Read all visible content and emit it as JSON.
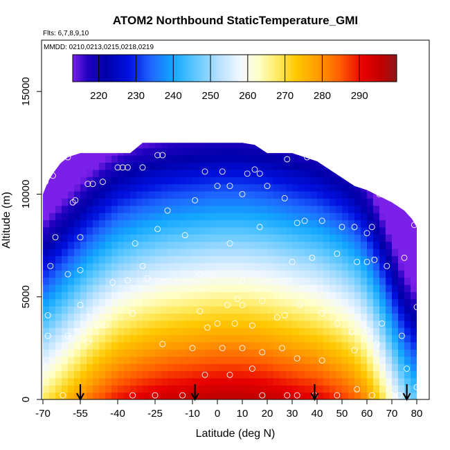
{
  "chart_data": {
    "type": "heatmap",
    "title": "ATOM2 Northbound StaticTemperature_GMI",
    "flights_note": "Flts: 6,7,8,9,10",
    "dates_note": "MMDD: 0210,0213,0215,0218,0219",
    "xlabel": "Latitude (deg N)",
    "ylabel": "Altitude (m)",
    "xlim": [
      -70,
      85
    ],
    "ylim": [
      0,
      17500
    ],
    "x_ticks": [
      -70,
      -55,
      -40,
      -25,
      -10,
      0,
      10,
      20,
      30,
      40,
      50,
      60,
      70,
      80
    ],
    "x_tick_labels": [
      "-70",
      "-55",
      "-40",
      "-25",
      "-10",
      "0",
      "10",
      "20",
      "30",
      "40",
      "50",
      "60",
      "70",
      "80"
    ],
    "y_ticks": [
      0,
      5000,
      10000,
      15000
    ],
    "y_tick_labels": [
      "0",
      "5000",
      "10000",
      "15000"
    ],
    "colorbar": {
      "min": 213,
      "max": 300,
      "ticks": [
        220,
        230,
        240,
        250,
        260,
        270,
        280,
        290
      ],
      "tick_labels": [
        "220",
        "230",
        "240",
        "250",
        "260",
        "270",
        "280",
        "290"
      ],
      "stops": [
        {
          "v": 213,
          "c": "#7a20e8"
        },
        {
          "v": 217,
          "c": "#2000c0"
        },
        {
          "v": 222,
          "c": "#0000a8"
        },
        {
          "v": 228,
          "c": "#0010e0"
        },
        {
          "v": 234,
          "c": "#1e66ff"
        },
        {
          "v": 240,
          "c": "#12a8ff"
        },
        {
          "v": 246,
          "c": "#60c8ff"
        },
        {
          "v": 252,
          "c": "#b4e0ff"
        },
        {
          "v": 258,
          "c": "#f2f8ff"
        },
        {
          "v": 263,
          "c": "#ffffc8"
        },
        {
          "v": 268,
          "c": "#ffea60"
        },
        {
          "v": 273,
          "c": "#ffc800"
        },
        {
          "v": 279,
          "c": "#ff9a00"
        },
        {
          "v": 285,
          "c": "#ff5a00"
        },
        {
          "v": 291,
          "c": "#e80000"
        },
        {
          "v": 296,
          "c": "#c00000"
        },
        {
          "v": 300,
          "c": "#8e1a1a"
        }
      ]
    },
    "coverage_top_altitude": [
      [
        -70,
        10000
      ],
      [
        -68,
        10600
      ],
      [
        -66,
        11000
      ],
      [
        -63,
        11500
      ],
      [
        -60,
        11800
      ],
      [
        -55,
        12000
      ],
      [
        -50,
        12000
      ],
      [
        -45,
        12000
      ],
      [
        -40,
        12000
      ],
      [
        -35,
        12000
      ],
      [
        -30,
        12500
      ],
      [
        -20,
        12500
      ],
      [
        -10,
        12500
      ],
      [
        0,
        12500
      ],
      [
        10,
        12500
      ],
      [
        15,
        12400
      ],
      [
        20,
        12000
      ],
      [
        25,
        12000
      ],
      [
        30,
        12000
      ],
      [
        35,
        11800
      ],
      [
        40,
        11600
      ],
      [
        45,
        11200
      ],
      [
        50,
        10800
      ],
      [
        55,
        10400
      ],
      [
        60,
        10200
      ],
      [
        65,
        9900
      ],
      [
        70,
        9600
      ],
      [
        75,
        9200
      ],
      [
        78,
        8800
      ],
      [
        80,
        8400
      ]
    ],
    "coverage_xrange": [
      -70,
      80
    ],
    "temperature_field_model": {
      "surface_temperature_profile": [
        [
          -70,
          268
        ],
        [
          -60,
          276
        ],
        [
          -50,
          284
        ],
        [
          -40,
          290
        ],
        [
          -30,
          293
        ],
        [
          -20,
          295
        ],
        [
          -10,
          296
        ],
        [
          0,
          297
        ],
        [
          10,
          297
        ],
        [
          20,
          296
        ],
        [
          30,
          294
        ],
        [
          40,
          292
        ],
        [
          50,
          288
        ],
        [
          55,
          285
        ],
        [
          60,
          280
        ],
        [
          65,
          272
        ],
        [
          70,
          262
        ],
        [
          75,
          252
        ],
        [
          80,
          246
        ]
      ],
      "lapse_rate_K_per_km": 6.3
    },
    "markers": {
      "type": "arrow-down",
      "x": [
        -55,
        -9,
        39,
        76
      ]
    },
    "points": [
      [
        -71,
        10100
      ],
      [
        -69,
        10600
      ],
      [
        -66,
        10900
      ],
      [
        -60,
        11800
      ],
      [
        -58,
        9600
      ],
      [
        -57,
        9700
      ],
      [
        -52,
        10500
      ],
      [
        -50,
        10500
      ],
      [
        -46,
        10600
      ],
      [
        -40,
        11300
      ],
      [
        -38,
        11300
      ],
      [
        -36,
        11300
      ],
      [
        -30,
        11300
      ],
      [
        -24,
        11900
      ],
      [
        -22,
        11900
      ],
      [
        -10,
        12700
      ],
      [
        -5,
        11100
      ],
      [
        2,
        11100
      ],
      [
        12,
        11000
      ],
      [
        15,
        11200
      ],
      [
        17,
        11000
      ],
      [
        28,
        11700
      ],
      [
        36,
        11800
      ],
      [
        -20,
        9200
      ],
      [
        -9,
        9700
      ],
      [
        0,
        10400
      ],
      [
        5,
        10400
      ],
      [
        10,
        10000
      ],
      [
        20,
        10400
      ],
      [
        27,
        9800
      ],
      [
        -65,
        7900
      ],
      [
        -55,
        7900
      ],
      [
        -24,
        8300
      ],
      [
        -13,
        8000
      ],
      [
        -33,
        7600
      ],
      [
        5,
        7600
      ],
      [
        17,
        8400
      ],
      [
        32,
        8600
      ],
      [
        35,
        8700
      ],
      [
        42,
        8700
      ],
      [
        50,
        8400
      ],
      [
        55,
        8400
      ],
      [
        60,
        8100
      ],
      [
        62,
        8400
      ],
      [
        65,
        10000
      ],
      [
        79,
        8500
      ],
      [
        -67,
        6500
      ],
      [
        -60,
        6100
      ],
      [
        -55,
        6300
      ],
      [
        -42,
        5700
      ],
      [
        -36,
        5800
      ],
      [
        -22,
        5700
      ],
      [
        -12,
        5700
      ],
      [
        -7,
        6100
      ],
      [
        -2,
        6000
      ],
      [
        10,
        5800
      ],
      [
        -30,
        6500
      ],
      [
        38,
        6900
      ],
      [
        30,
        6700
      ],
      [
        48,
        7100
      ],
      [
        56,
        6700
      ],
      [
        60,
        6700
      ],
      [
        63,
        6800
      ],
      [
        68,
        6500
      ],
      [
        75,
        6900
      ],
      [
        -28,
        5900
      ],
      [
        -16,
        5700
      ],
      [
        4,
        4600
      ],
      [
        8,
        4900
      ],
      [
        10,
        4600
      ],
      [
        18,
        4800
      ],
      [
        27,
        4100
      ],
      [
        33,
        4600
      ],
      [
        24,
        4000
      ],
      [
        42,
        4200
      ],
      [
        48,
        3700
      ],
      [
        54,
        3300
      ],
      [
        60,
        3400
      ],
      [
        66,
        3700
      ],
      [
        74,
        3100
      ],
      [
        80,
        4500
      ],
      [
        82,
        4100
      ],
      [
        -68,
        4100
      ],
      [
        -55,
        4600
      ],
      [
        -45,
        3600
      ],
      [
        -34,
        4200
      ],
      [
        -7,
        4300
      ],
      [
        0,
        3700
      ],
      [
        7,
        3700
      ],
      [
        14,
        3600
      ],
      [
        -68,
        3100
      ],
      [
        -60,
        3100
      ],
      [
        -52,
        2800
      ],
      [
        -48,
        3600
      ],
      [
        -22,
        2700
      ],
      [
        -10,
        2500
      ],
      [
        -4,
        3500
      ],
      [
        2,
        2500
      ],
      [
        10,
        2500
      ],
      [
        18,
        2300
      ],
      [
        26,
        2500
      ],
      [
        32,
        2000
      ],
      [
        42,
        1900
      ],
      [
        55,
        2400
      ],
      [
        64,
        2700
      ],
      [
        76,
        1500
      ],
      [
        80,
        600
      ],
      [
        -70,
        1700
      ],
      [
        -62,
        200
      ],
      [
        -25,
        200
      ],
      [
        -14,
        200
      ],
      [
        -5,
        1200
      ],
      [
        5,
        1200
      ],
      [
        14,
        1500
      ],
      [
        18,
        200
      ],
      [
        28,
        200
      ],
      [
        32,
        200
      ],
      [
        -34,
        200
      ],
      [
        39,
        200
      ],
      [
        48,
        200
      ],
      [
        56,
        500
      ],
      [
        62,
        200
      ],
      [
        70,
        200
      ],
      [
        73,
        200
      ]
    ]
  }
}
